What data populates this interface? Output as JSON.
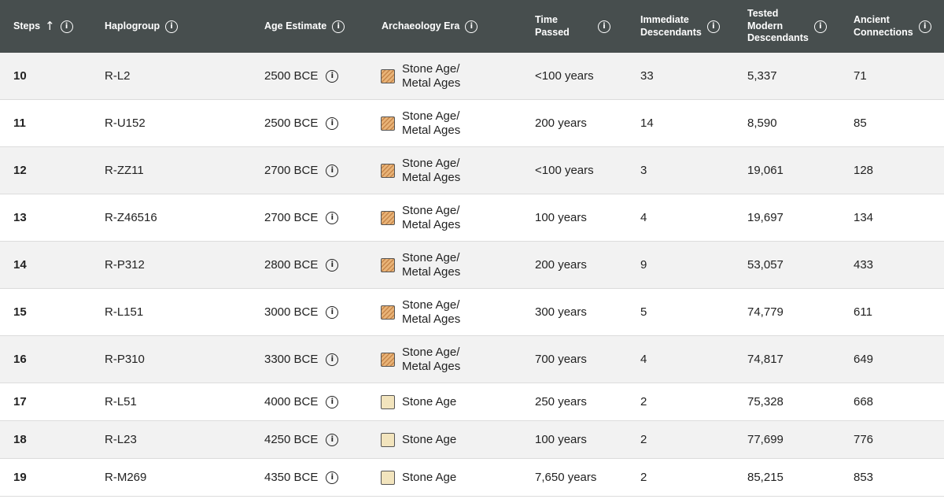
{
  "header": {
    "steps": "Steps",
    "haplogroup": "Haplogroup",
    "age_estimate": "Age Estimate",
    "archaeology_era": "Archaeology Era",
    "time_passed_1": "Time",
    "time_passed_2": "Passed",
    "immediate_1": "Immediate",
    "immediate_2": "Descendants",
    "tested_1": "Tested",
    "tested_2": "Modern",
    "tested_3": "Descendants",
    "ancient_1": "Ancient",
    "ancient_2": "Connections",
    "sort_icon": "arrow-up-icon",
    "info_glyph": "i"
  },
  "colors": {
    "header_bg": "#474e4e",
    "row_alt_bg": "#f2f2f2",
    "metal_swatch": "#e9b478",
    "stone_swatch": "#f2e4bd"
  },
  "rows": [
    {
      "step": "10",
      "haplogroup": "R-L2",
      "age": "2500 BCE",
      "era_1": "Stone Age/",
      "era_2": "Metal Ages",
      "time": "<100 years",
      "immediate": "33",
      "tested": "5,337",
      "ancient": "71"
    },
    {
      "step": "11",
      "haplogroup": "R-U152",
      "age": "2500 BCE",
      "era_1": "Stone Age/",
      "era_2": "Metal Ages",
      "time": "200 years",
      "immediate": "14",
      "tested": "8,590",
      "ancient": "85"
    },
    {
      "step": "12",
      "haplogroup": "R-ZZ11",
      "age": "2700 BCE",
      "era_1": "Stone Age/",
      "era_2": "Metal Ages",
      "time": "<100 years",
      "immediate": "3",
      "tested": "19,061",
      "ancient": "128"
    },
    {
      "step": "13",
      "haplogroup": "R-Z46516",
      "age": "2700 BCE",
      "era_1": "Stone Age/",
      "era_2": "Metal Ages",
      "time": "100 years",
      "immediate": "4",
      "tested": "19,697",
      "ancient": "134"
    },
    {
      "step": "14",
      "haplogroup": "R-P312",
      "age": "2800 BCE",
      "era_1": "Stone Age/",
      "era_2": "Metal Ages",
      "time": "200 years",
      "immediate": "9",
      "tested": "53,057",
      "ancient": "433"
    },
    {
      "step": "15",
      "haplogroup": "R-L151",
      "age": "3000 BCE",
      "era_1": "Stone Age/",
      "era_2": "Metal Ages",
      "time": "300 years",
      "immediate": "5",
      "tested": "74,779",
      "ancient": "611"
    },
    {
      "step": "16",
      "haplogroup": "R-P310",
      "age": "3300 BCE",
      "era_1": "Stone Age/",
      "era_2": "Metal Ages",
      "time": "700 years",
      "immediate": "4",
      "tested": "74,817",
      "ancient": "649"
    },
    {
      "step": "17",
      "haplogroup": "R-L51",
      "age": "4000 BCE",
      "era_1": "Stone Age",
      "era_2": "",
      "time": "250 years",
      "immediate": "2",
      "tested": "75,328",
      "ancient": "668"
    },
    {
      "step": "18",
      "haplogroup": "R-L23",
      "age": "4250 BCE",
      "era_1": "Stone Age",
      "era_2": "",
      "time": "100 years",
      "immediate": "2",
      "tested": "77,699",
      "ancient": "776"
    },
    {
      "step": "19",
      "haplogroup": "R-M269",
      "age": "4350 BCE",
      "era_1": "Stone Age",
      "era_2": "",
      "time": "7,650 years",
      "immediate": "2",
      "tested": "85,215",
      "ancient": "853"
    }
  ]
}
